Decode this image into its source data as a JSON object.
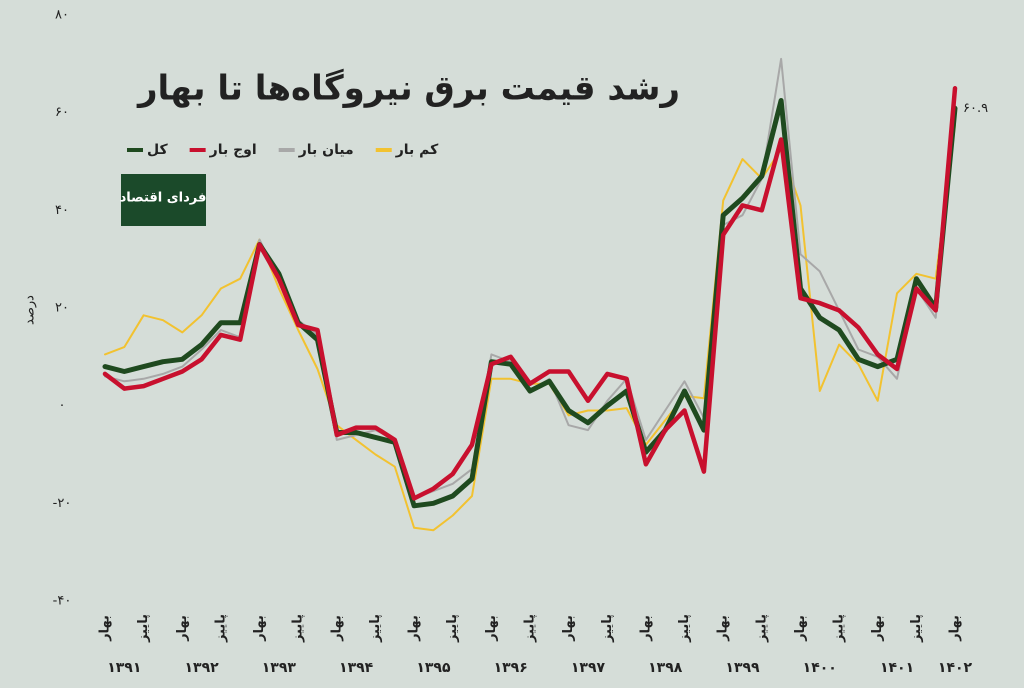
{
  "chart_data": {
    "type": "line",
    "title": "رشد قیمت برق نیروگاه‌ها تا بهار",
    "y_label": "درصد",
    "logo_text": "فردای اقتصاد",
    "categories": [
      "بهار",
      null,
      "پاییز",
      null,
      "بهار",
      null,
      "پاییز",
      null,
      "بهار",
      null,
      "پاییز",
      null,
      "بهار",
      null,
      "پاییز",
      null,
      "بهار",
      null,
      "پاییز",
      null,
      "بهار",
      null,
      "پاییز",
      null,
      "بهار",
      null,
      "پاییز",
      null,
      "بهار",
      null,
      "پاییز",
      null,
      "بهار",
      null,
      "پاییز",
      null,
      "بهار",
      null,
      "پاییز",
      null,
      "بهار",
      null,
      "پاییز",
      null,
      "بهار"
    ],
    "years": [
      "۱۳۹۱",
      "۱۳۹۲",
      "۱۳۹۳",
      "۱۳۹۴",
      "۱۳۹۵",
      "۱۳۹۶",
      "۱۳۹۷",
      "۱۳۹۸",
      "۱۳۹۹",
      "۱۴۰۰",
      "۱۴۰۱",
      "۱۴۰۲"
    ],
    "series": [
      {
        "name": "کل",
        "color": "#1f4a1f",
        "width": 5,
        "values": [
          8,
          7,
          8,
          9,
          9.5,
          12.5,
          17,
          17,
          33,
          27,
          17,
          13.5,
          -5.5,
          -5.5,
          -6.5,
          -7.5,
          -20.5,
          -20,
          -18.5,
          -15,
          9,
          8.5,
          3,
          5,
          -1,
          -3.5,
          0,
          3,
          -9.5,
          -5,
          3,
          -5,
          39,
          42.5,
          47,
          62.5,
          24,
          18,
          15.5,
          9.5,
          8,
          9.5,
          26,
          20,
          60.9
        ],
        "value_labels": [
          null,
          null,
          null,
          null,
          null,
          null,
          null,
          null,
          null,
          null,
          null,
          null,
          null,
          null,
          null,
          null,
          null,
          null,
          null,
          null,
          null,
          null,
          null,
          null,
          null,
          null,
          null,
          null,
          null,
          null,
          null,
          null,
          null,
          null,
          null,
          null,
          null,
          null,
          null,
          null,
          null,
          null,
          null,
          null,
          "۶۰.۹"
        ]
      },
      {
        "name": "اوج بار",
        "color": "#c8102e",
        "width": 4.5,
        "values": [
          6.5,
          3.5,
          4,
          5.5,
          7,
          9.5,
          14.5,
          13.5,
          33,
          26,
          16.5,
          15.5,
          -6,
          -4.5,
          -4.5,
          -7,
          -19,
          -17,
          -14,
          -8,
          8.5,
          10,
          4.5,
          7,
          7,
          1,
          6.5,
          5.5,
          -12,
          -5,
          -1,
          -13.5,
          35,
          41,
          40,
          54.5,
          22,
          21,
          19.5,
          16,
          10.5,
          7.5,
          24,
          19.5,
          65
        ]
      },
      {
        "name": "میان بار",
        "color": "#a8a8a8",
        "width": 2,
        "values": [
          6,
          5,
          5.5,
          6.5,
          8,
          11.5,
          15.5,
          14,
          34,
          26,
          17.5,
          14.5,
          -7,
          -6,
          -5,
          -7,
          -19,
          -17.5,
          -16,
          -13,
          10.5,
          9,
          3,
          5.5,
          -4,
          -5,
          1,
          5.5,
          -7,
          -1,
          5,
          -2.5,
          37,
          39,
          46.5,
          71,
          31,
          27.5,
          19.5,
          11.5,
          10,
          5.5,
          24,
          18,
          61.5
        ]
      },
      {
        "name": "کم بار",
        "color": "#f2c230",
        "width": 2,
        "values": [
          10.5,
          12,
          18.5,
          17.5,
          15,
          18.5,
          24,
          26,
          34,
          24,
          15.5,
          7.5,
          -4,
          -7,
          -10,
          -12.5,
          -25,
          -25.5,
          -22.5,
          -18.5,
          5.5,
          5.5,
          4.5,
          4.5,
          -2,
          -1,
          -1,
          -0.5,
          -8,
          -3,
          2,
          1.5,
          42,
          50.5,
          46.5,
          52.5,
          41,
          3,
          12.5,
          8.5,
          1,
          23,
          27,
          26,
          57.5
        ]
      }
    ],
    "ylim": [
      -40,
      80
    ],
    "yticks": [
      {
        "value": -40,
        "label": "-۴۰"
      },
      {
        "value": -20,
        "label": "-۲۰"
      },
      {
        "value": 0,
        "label": "۰"
      },
      {
        "value": 20,
        "label": "۲۰"
      },
      {
        "value": 40,
        "label": "۴۰"
      },
      {
        "value": 60,
        "label": "۶۰"
      },
      {
        "value": 80,
        "label": "۸۰"
      }
    ],
    "grid": false
  }
}
